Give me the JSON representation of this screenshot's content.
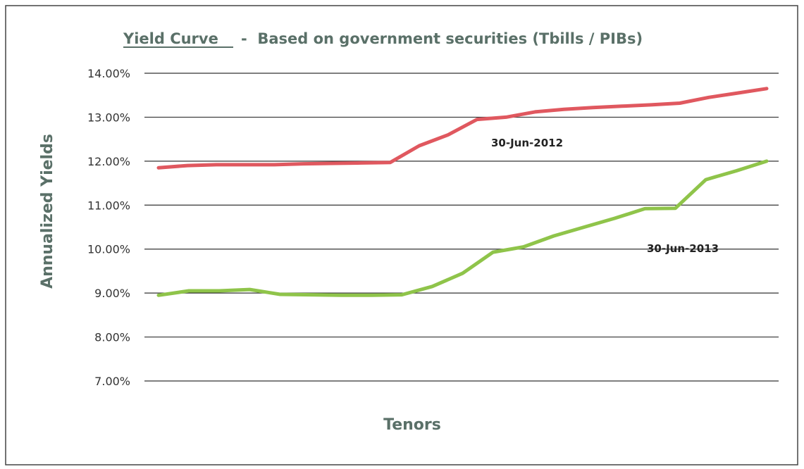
{
  "chart_data": {
    "type": "line",
    "title": "Yield Curve",
    "subtitle": "-  Based on government securities (Tbills / PIBs)",
    "xlabel": "Tenors",
    "ylabel": "Annualized Yields",
    "ylim": [
      7.0,
      14.0
    ],
    "yticks": [
      "14.00%",
      "13.00%",
      "12.00%",
      "11.00%",
      "10.00%",
      "9.00%",
      "8.00%",
      "7.00%"
    ],
    "ytick_values": [
      14,
      13,
      12,
      11,
      10,
      9,
      8,
      7
    ],
    "grid": true,
    "legend": "none",
    "series": [
      {
        "name": "30-Jun-2012",
        "color": "#e0585f",
        "values": [
          11.85,
          11.9,
          11.92,
          11.92,
          11.92,
          11.94,
          11.95,
          11.96,
          11.97,
          12.35,
          12.6,
          12.95,
          13.0,
          13.12,
          13.18,
          13.22,
          13.25,
          13.28,
          13.32,
          13.45,
          13.55,
          13.65
        ]
      },
      {
        "name": "30-Jun-2013",
        "color": "#8fc44a",
        "values": [
          8.95,
          9.05,
          9.05,
          9.08,
          8.97,
          8.96,
          8.95,
          8.95,
          8.96,
          9.15,
          9.45,
          9.93,
          10.05,
          10.3,
          10.5,
          10.7,
          10.92,
          10.93,
          11.58,
          11.78,
          12.0
        ]
      }
    ]
  }
}
